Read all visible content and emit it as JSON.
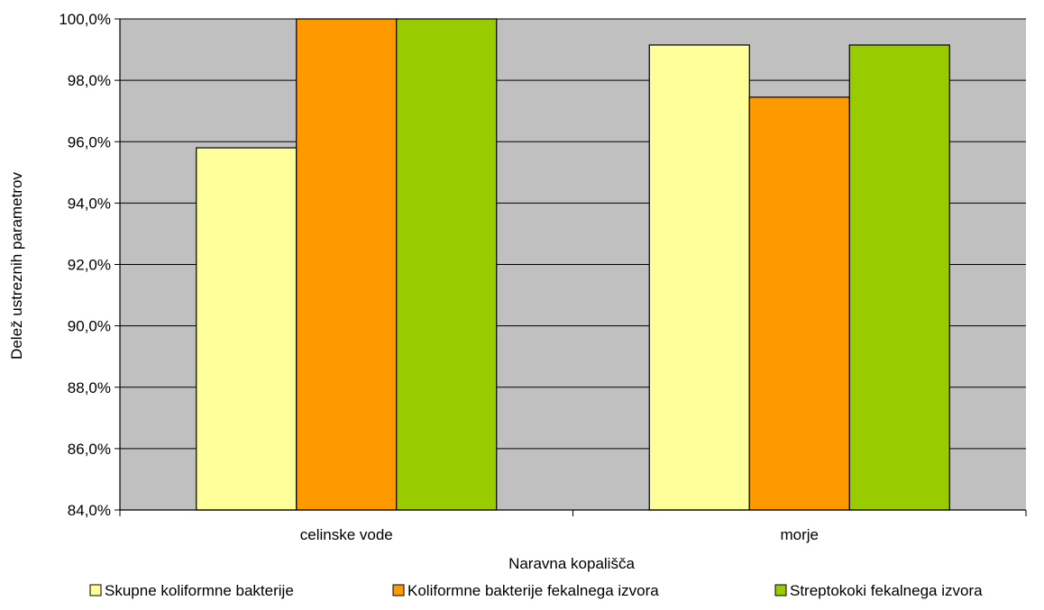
{
  "chart_data": {
    "type": "bar",
    "title": "",
    "xlabel": "Naravna kopališča",
    "ylabel": "Delež ustreznih parametrov",
    "categories": [
      "celinske vode",
      "morje"
    ],
    "series": [
      {
        "name": "Skupne koliformne bakterije",
        "color": "#FFFF99",
        "values": [
          95.8,
          99.15
        ]
      },
      {
        "name": "Koliformne bakterije fekalnega izvora",
        "color": "#FF9900",
        "values": [
          100.0,
          97.45
        ]
      },
      {
        "name": "Streptokoki fekalnega izvora",
        "color": "#99CC00",
        "values": [
          100.0,
          99.15
        ]
      }
    ],
    "ylim": [
      84,
      100
    ],
    "yticks": [
      "84,0%",
      "86,0%",
      "88,0%",
      "90,0%",
      "92,0%",
      "94,0%",
      "96,0%",
      "98,0%",
      "100,0%"
    ],
    "grid": true,
    "plot_background": "#C0C0C0",
    "legend_position": "bottom"
  }
}
